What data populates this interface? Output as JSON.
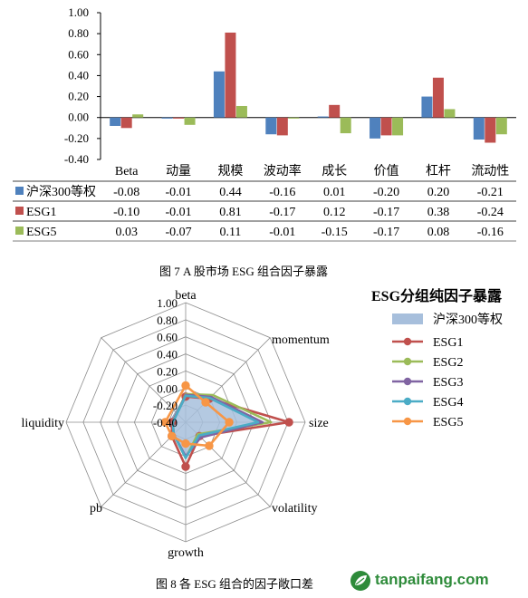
{
  "figure1": {
    "caption": "图 7 A 股市场 ESG 组合因子暴露",
    "chart_data": {
      "type": "bar",
      "categories": [
        "Beta",
        "动量",
        "规模",
        "波动率",
        "成长",
        "价值",
        "杠杆",
        "流动性"
      ],
      "series": [
        {
          "name": "沪深300等权",
          "color": "#4f81bd",
          "values": [
            -0.08,
            -0.01,
            0.44,
            -0.16,
            0.01,
            -0.2,
            0.2,
            -0.21
          ]
        },
        {
          "name": "ESG1",
          "color": "#c0504d",
          "values": [
            -0.1,
            -0.01,
            0.81,
            -0.17,
            0.12,
            -0.17,
            0.38,
            -0.24
          ]
        },
        {
          "name": "ESG5",
          "color": "#9bbb59",
          "values": [
            0.03,
            -0.07,
            0.11,
            -0.01,
            -0.15,
            -0.17,
            0.08,
            -0.16
          ]
        }
      ],
      "ylim": [
        -0.4,
        1.0
      ],
      "yticks": [
        "1.00",
        "0.80",
        "0.60",
        "0.40",
        "0.20",
        "0.00",
        "-0.20",
        "-0.40"
      ],
      "table": [
        [
          "-0.08",
          "-0.01",
          "0.44",
          "-0.16",
          "0.01",
          "-0.20",
          "0.20",
          "-0.21"
        ],
        [
          "-0.10",
          "-0.01",
          "0.81",
          "-0.17",
          "0.12",
          "-0.17",
          "0.38",
          "-0.24"
        ],
        [
          "0.03",
          "-0.07",
          "0.11",
          "-0.01",
          "-0.15",
          "-0.17",
          "0.08",
          "-0.16"
        ]
      ]
    }
  },
  "figure2": {
    "caption": "图 8 各 ESG 组合的因子敞口差",
    "chart_data": {
      "type": "radar",
      "title": "ESG分组纯因子暴露",
      "axes": [
        "beta",
        "momentum",
        "size",
        "volatility",
        "growth",
        "pb",
        "liquidity"
      ],
      "rlim": [
        -0.4,
        1.0
      ],
      "rticks": [
        "1.00",
        "0.80",
        "0.60",
        "0.40",
        "0.20",
        "0.00",
        "-0.20",
        "-0.40"
      ],
      "series": [
        {
          "name": "沪深300等权",
          "color": "#a7bfdc",
          "style": "area",
          "values": [
            -0.08,
            -0.01,
            0.44,
            -0.16,
            0.01,
            -0.2,
            -0.21
          ]
        },
        {
          "name": "ESG1",
          "color": "#c0504d",
          "style": "line-marker",
          "values": [
            -0.1,
            -0.01,
            0.81,
            -0.17,
            0.12,
            -0.17,
            -0.24
          ]
        },
        {
          "name": "ESG2",
          "color": "#9bbb59",
          "style": "line",
          "values": [
            -0.07,
            0.05,
            0.6,
            -0.2,
            0.02,
            -0.2,
            -0.25
          ]
        },
        {
          "name": "ESG3",
          "color": "#8064a2",
          "style": "line",
          "values": [
            -0.08,
            0.02,
            0.5,
            -0.15,
            0.0,
            -0.2,
            -0.25
          ]
        },
        {
          "name": "ESG4",
          "color": "#4bacc6",
          "style": "line",
          "values": [
            -0.09,
            0.0,
            0.45,
            -0.18,
            0.02,
            -0.2,
            -0.25
          ]
        },
        {
          "name": "ESG5",
          "color": "#f79646",
          "style": "line-marker",
          "values": [
            0.03,
            -0.07,
            0.11,
            -0.01,
            -0.15,
            -0.17,
            -0.16
          ]
        }
      ]
    }
  },
  "watermark": {
    "text": "tanpaifang.com"
  }
}
